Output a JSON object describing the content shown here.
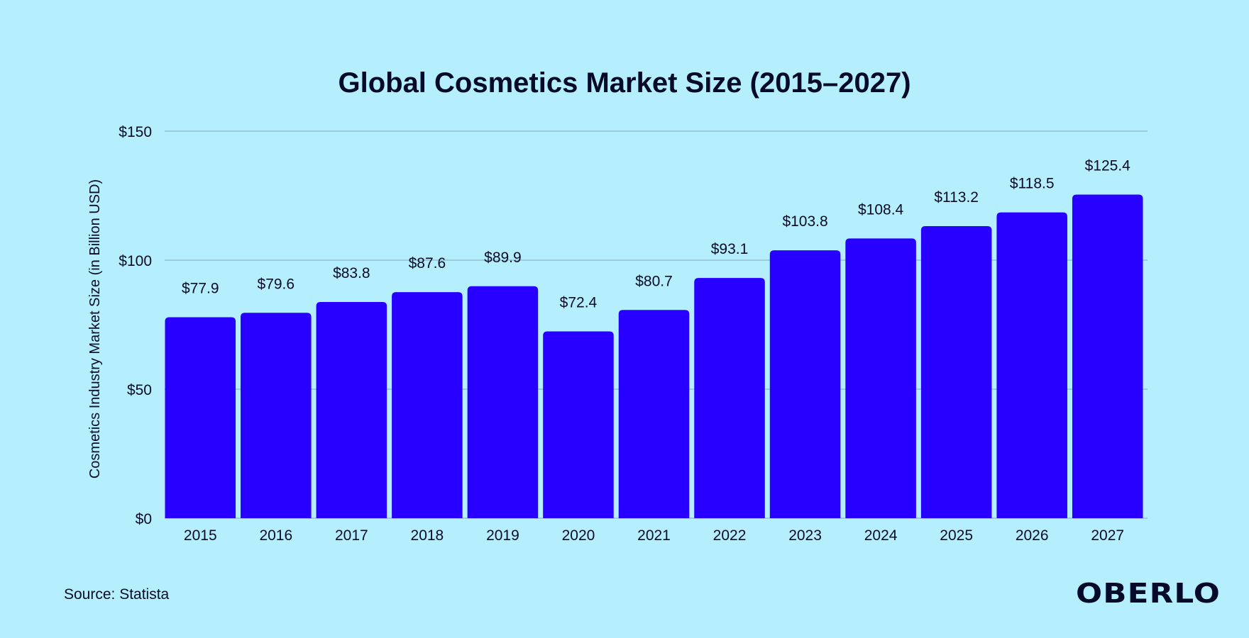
{
  "chart_data": {
    "type": "bar",
    "title": "Global Cosmetics Market Size (2015–2027)",
    "xlabel": "",
    "ylabel": "Cosmetics Industry Market Size (in Billion USD)",
    "categories": [
      "2015",
      "2016",
      "2017",
      "2018",
      "2019",
      "2020",
      "2021",
      "2022",
      "2023",
      "2024",
      "2025",
      "2026",
      "2027"
    ],
    "values": [
      77.9,
      79.6,
      83.8,
      87.6,
      89.9,
      72.4,
      80.7,
      93.1,
      103.8,
      108.4,
      113.2,
      118.5,
      125.4
    ],
    "data_labels": [
      "$77.9",
      "$79.6",
      "$83.8",
      "$87.6",
      "$89.9",
      "$72.4",
      "$80.7",
      "$93.1",
      "$103.8",
      "$108.4",
      "$113.2",
      "$118.5",
      "$125.4"
    ],
    "ylim": [
      0,
      150
    ],
    "yticks": [
      0,
      50,
      100,
      150
    ],
    "ytick_labels": [
      "$0",
      "$50",
      "$100",
      "$150"
    ],
    "grid": true,
    "bar_color": "#2800ff",
    "background": "#b5effe"
  },
  "footer": {
    "source": "Source: Statista",
    "logo": "OBERLO"
  }
}
